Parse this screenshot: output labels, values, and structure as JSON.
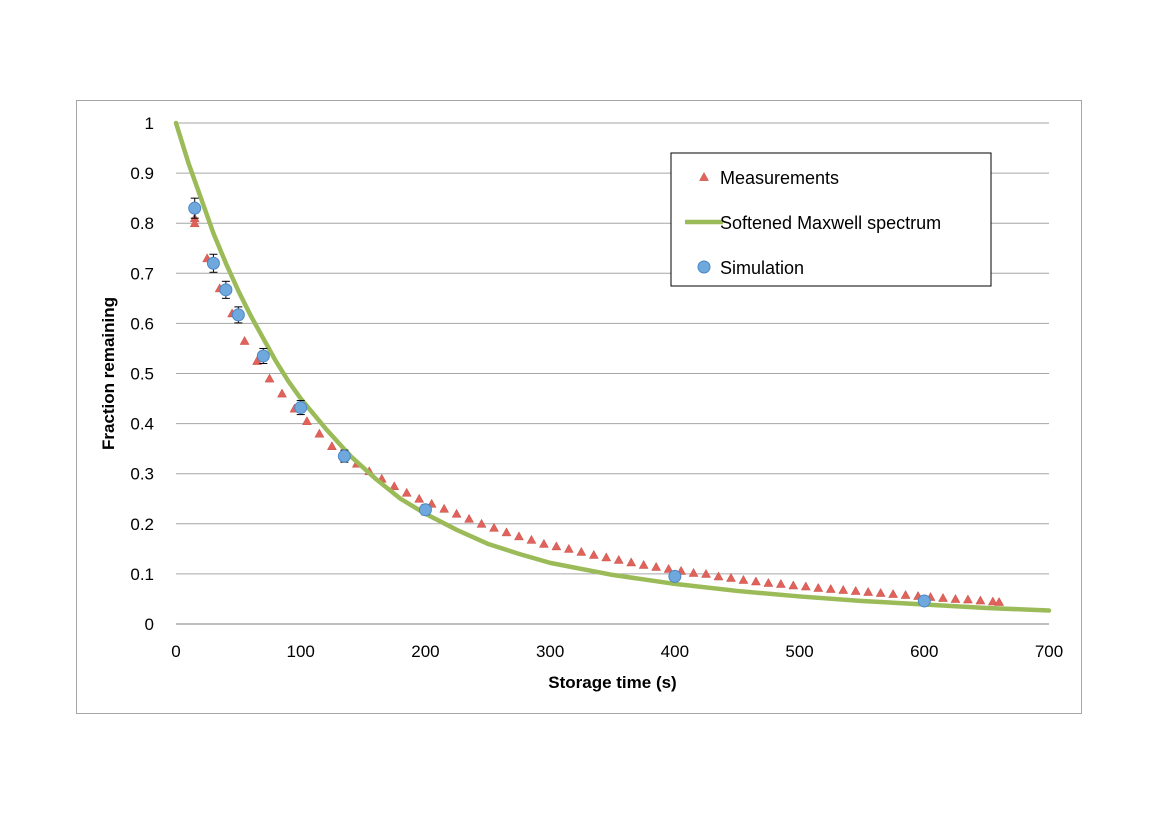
{
  "chart_data": {
    "type": "scatter",
    "title": "",
    "xlabel": "Storage time (s)",
    "ylabel": "Fraction remaining",
    "xlim": [
      0,
      700
    ],
    "ylim": [
      0,
      1
    ],
    "xticks": [
      0,
      100,
      200,
      300,
      400,
      500,
      600,
      700
    ],
    "xtick_labels": [
      "0",
      "100",
      "200",
      "300",
      "400",
      "500",
      "600",
      "700"
    ],
    "yticks": [
      0,
      0.1,
      0.2,
      0.3,
      0.4,
      0.5,
      0.6,
      0.7,
      0.8,
      0.9,
      1
    ],
    "ytick_labels": [
      "0",
      "0.1",
      "0.2",
      "0.3",
      "0.4",
      "0.5",
      "0.6",
      "0.7",
      "0.8",
      "0.9",
      "1"
    ],
    "grid": true,
    "legend_position": "top-right",
    "series": [
      {
        "name": "Measurements",
        "type": "scatter",
        "marker": "triangle",
        "color": "#e0625a",
        "x": [
          15,
          15,
          25,
          35,
          45,
          55,
          65,
          75,
          85,
          95,
          105,
          115,
          125,
          135,
          145,
          155,
          165,
          175,
          185,
          195,
          205,
          215,
          225,
          235,
          245,
          255,
          265,
          275,
          285,
          295,
          305,
          315,
          325,
          335,
          345,
          355,
          365,
          375,
          385,
          395,
          405,
          415,
          425,
          435,
          445,
          455,
          465,
          475,
          485,
          495,
          505,
          515,
          525,
          535,
          545,
          555,
          565,
          575,
          585,
          595,
          605,
          615,
          625,
          635,
          645,
          655,
          660
        ],
        "y": [
          0.81,
          0.8,
          0.73,
          0.67,
          0.62,
          0.565,
          0.525,
          0.49,
          0.46,
          0.43,
          0.405,
          0.38,
          0.355,
          0.34,
          0.32,
          0.305,
          0.29,
          0.275,
          0.262,
          0.25,
          0.24,
          0.23,
          0.22,
          0.21,
          0.2,
          0.192,
          0.183,
          0.175,
          0.168,
          0.16,
          0.155,
          0.15,
          0.144,
          0.138,
          0.133,
          0.128,
          0.123,
          0.118,
          0.114,
          0.11,
          0.106,
          0.102,
          0.1,
          0.095,
          0.092,
          0.088,
          0.085,
          0.082,
          0.08,
          0.077,
          0.075,
          0.072,
          0.07,
          0.068,
          0.066,
          0.064,
          0.062,
          0.06,
          0.058,
          0.056,
          0.054,
          0.052,
          0.05,
          0.049,
          0.047,
          0.045,
          0.044
        ]
      },
      {
        "name": "Softened Maxwell spectrum",
        "type": "line",
        "color": "#9bbb59",
        "x": [
          0,
          10,
          20,
          30,
          40,
          50,
          60,
          70,
          80,
          90,
          100,
          120,
          140,
          160,
          180,
          200,
          225,
          250,
          275,
          300,
          350,
          400,
          450,
          500,
          550,
          600,
          650,
          700
        ],
        "y": [
          1.0,
          0.92,
          0.85,
          0.78,
          0.72,
          0.665,
          0.615,
          0.57,
          0.525,
          0.485,
          0.45,
          0.39,
          0.335,
          0.29,
          0.25,
          0.22,
          0.188,
          0.16,
          0.14,
          0.122,
          0.098,
          0.08,
          0.066,
          0.055,
          0.046,
          0.039,
          0.032,
          0.027
        ]
      },
      {
        "name": "Simulation",
        "type": "scatter",
        "marker": "circle",
        "color": "#6fa8dc",
        "x": [
          15,
          30,
          40,
          50,
          70,
          100,
          135,
          200,
          400,
          600
        ],
        "y": [
          0.83,
          0.72,
          0.667,
          0.617,
          0.535,
          0.432,
          0.335,
          0.228,
          0.095,
          0.046
        ],
        "error": [
          0.02,
          0.018,
          0.017,
          0.016,
          0.015,
          0.014,
          0.012,
          0.01,
          0.006,
          0.004
        ]
      }
    ]
  }
}
